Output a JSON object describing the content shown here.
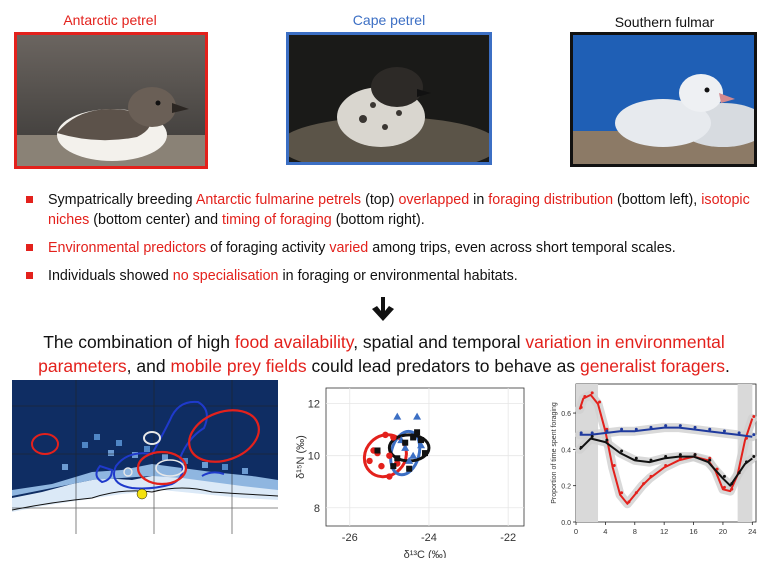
{
  "species": [
    {
      "label": "Antarctic petrel",
      "color": "#e3211c"
    },
    {
      "label": "Cape petrel",
      "color": "#3c6fc4"
    },
    {
      "label": "Southern fulmar",
      "color": "#111111"
    }
  ],
  "bullets": [
    [
      {
        "text": "Sympatrically breeding ",
        "hl": false
      },
      {
        "text": "Antarctic fulmarine petrels",
        "hl": true
      },
      {
        "text": " (top) ",
        "hl": false
      },
      {
        "text": "overlapped",
        "hl": true
      },
      {
        "text": " in ",
        "hl": false
      },
      {
        "text": "foraging distribution",
        "hl": true
      },
      {
        "text": " (bottom left), ",
        "hl": false
      },
      {
        "text": "isotopic niches",
        "hl": true
      },
      {
        "text": " (bottom center) and ",
        "hl": false
      },
      {
        "text": "timing of foraging",
        "hl": true
      },
      {
        "text": " (bottom right).",
        "hl": false
      }
    ],
    [
      {
        "text": "Environmental predictors",
        "hl": true
      },
      {
        "text": " of foraging activity ",
        "hl": false
      },
      {
        "text": "varied",
        "hl": true
      },
      {
        "text": " among trips, even across short temporal scales.",
        "hl": false
      }
    ],
    [
      {
        "text": "Individuals showed ",
        "hl": false
      },
      {
        "text": "no specialisation",
        "hl": true
      },
      {
        "text": " in foraging or environmental habitats.",
        "hl": false
      }
    ]
  ],
  "conclusion": [
    {
      "text": "The combination of high ",
      "hl": false
    },
    {
      "text": "food availability",
      "hl": true
    },
    {
      "text": ", spatial and temporal ",
      "hl": false
    },
    {
      "text": "variation in environmental parameters",
      "hl": true
    },
    {
      "text": ", and ",
      "hl": false
    },
    {
      "text": "mobile prey fields",
      "hl": true
    },
    {
      "text": " could lead predators to behave as ",
      "hl": false
    },
    {
      "text": "generalist foragers",
      "hl": true
    },
    {
      "text": ".",
      "hl": false
    }
  ],
  "arrow_icon": "down-arrow-icon",
  "colors": {
    "highlight": "#e3211c",
    "antarctic": "#e3211c",
    "cape": "#3c6fc4",
    "fulmar": "#111111",
    "blue_line": "#1f3a9e"
  },
  "chart_data": [
    {
      "type": "scatter",
      "xlabel": "δ¹³C (‰)",
      "ylabel": "δ¹⁵N (‰)",
      "xlim": [
        -26.6,
        -21.6
      ],
      "ylim": [
        7.3,
        12.6
      ],
      "x_ticks": [
        -26,
        -24,
        -22
      ],
      "y_ticks": [
        8,
        10,
        12
      ],
      "series": [
        {
          "color": "#e3211c",
          "marker": "circle",
          "x": [
            -25.5,
            -25.2,
            -25.0,
            -25.1,
            -24.9,
            -25.3,
            -25.0,
            -24.8,
            -25.4
          ],
          "y": [
            9.8,
            9.6,
            10.0,
            10.8,
            10.7,
            10.1,
            9.2,
            9.7,
            10.2
          ]
        },
        {
          "color": "#3c6fc4",
          "marker": "triangle",
          "x": [
            -24.8,
            -24.6,
            -24.4,
            -24.5,
            -24.7,
            -24.3,
            -24.2
          ],
          "y": [
            11.5,
            10.3,
            10.0,
            9.8,
            10.6,
            11.5,
            10.4
          ]
        },
        {
          "color": "#111111",
          "marker": "square",
          "x": [
            -25.3,
            -24.8,
            -24.6,
            -24.4,
            -24.2,
            -24.1,
            -24.5,
            -24.9,
            -24.3
          ],
          "y": [
            10.2,
            9.9,
            10.5,
            10.7,
            10.6,
            10.1,
            9.5,
            9.6,
            10.9
          ]
        }
      ],
      "ellipses": [
        {
          "color": "#e3211c",
          "cx": -25.1,
          "cy": 10.0,
          "rx": 0.5,
          "ry": 0.85,
          "angle": 45
        },
        {
          "color": "#3c6fc4",
          "cx": -24.6,
          "cy": 10.1,
          "rx": 0.35,
          "ry": 0.85,
          "angle": 15
        },
        {
          "color": "#111111",
          "cx": -24.5,
          "cy": 10.3,
          "rx": 0.5,
          "ry": 0.5,
          "angle": 0
        }
      ]
    },
    {
      "type": "line",
      "ylabel": "Proportion of time spent foraging",
      "xlim": [
        0,
        24.5
      ],
      "ylim": [
        0,
        0.76
      ],
      "x_ticks": [
        0,
        4,
        8,
        12,
        16,
        20,
        24
      ],
      "y_ticks": [
        0.0,
        0.2,
        0.4,
        0.6
      ],
      "shaded": [
        [
          0,
          3
        ],
        [
          22,
          24
        ]
      ],
      "series": [
        {
          "color": "#e3211c",
          "x": [
            0.5,
            1,
            2,
            3,
            4,
            5,
            6,
            7,
            8,
            9,
            10,
            12,
            14,
            16,
            18,
            19,
            20,
            21,
            22,
            23,
            24
          ],
          "y": [
            0.62,
            0.68,
            0.7,
            0.65,
            0.5,
            0.3,
            0.15,
            0.1,
            0.15,
            0.2,
            0.24,
            0.3,
            0.34,
            0.36,
            0.34,
            0.28,
            0.18,
            0.17,
            0.26,
            0.45,
            0.57
          ]
        },
        {
          "color": "#1f3a9e",
          "x": [
            0.5,
            2,
            4,
            6,
            8,
            10,
            12,
            14,
            16,
            18,
            20,
            22,
            24
          ],
          "y": [
            0.48,
            0.48,
            0.49,
            0.5,
            0.5,
            0.51,
            0.52,
            0.52,
            0.51,
            0.5,
            0.49,
            0.48,
            0.47
          ]
        },
        {
          "color": "#111111",
          "x": [
            0.5,
            2,
            4,
            6,
            8,
            10,
            12,
            14,
            16,
            18,
            20,
            21,
            22,
            23,
            24
          ],
          "y": [
            0.4,
            0.46,
            0.44,
            0.38,
            0.34,
            0.33,
            0.35,
            0.36,
            0.36,
            0.33,
            0.24,
            0.2,
            0.26,
            0.32,
            0.35
          ]
        }
      ]
    }
  ]
}
